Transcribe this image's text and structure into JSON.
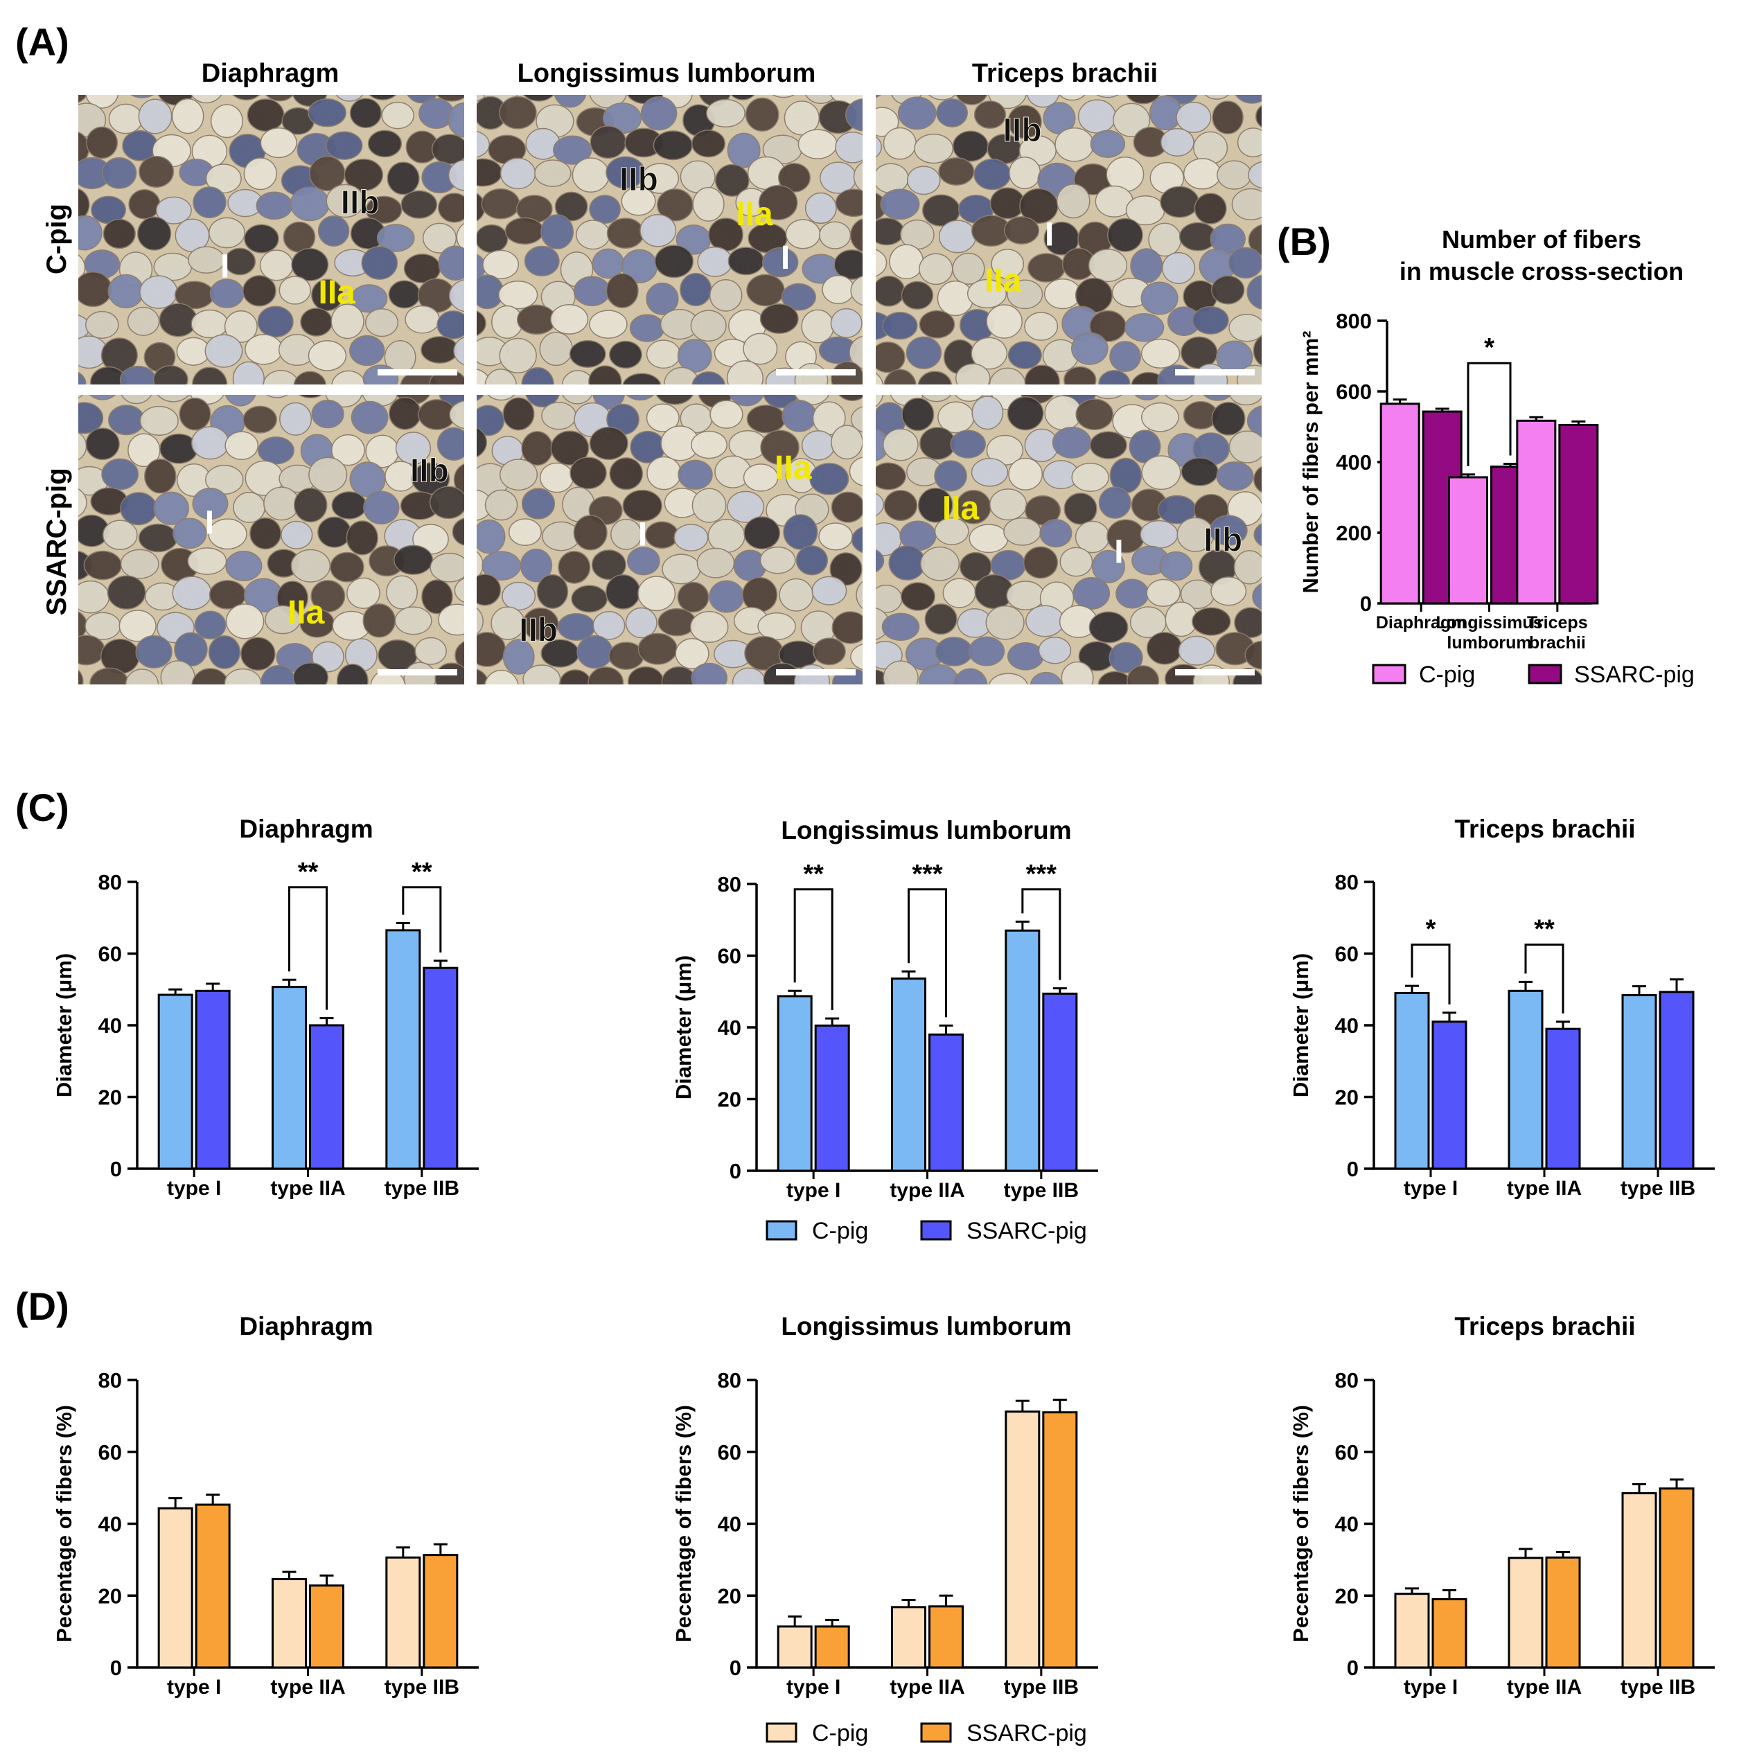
{
  "colors": {
    "b_c": "#f47ff0",
    "b_s": "#940a82",
    "c_c": "#7ab9f4",
    "c_s": "#5456fb",
    "d_c": "#fde0bb",
    "d_s": "#f9a136",
    "axis": "#000000"
  },
  "panel_a": {
    "label": "(A)",
    "columns": [
      "Diaphragm",
      "Longissimus lumborum",
      "Triceps brachii"
    ],
    "rows": [
      "C-pig",
      "SSARC-pig"
    ],
    "fiber_labels": [
      [
        "I",
        "IIa",
        "IIb"
      ],
      [
        "I",
        "IIa",
        "IIb"
      ],
      [
        "I",
        "IIa",
        "IIb"
      ],
      [
        "I",
        "IIa",
        "IIb"
      ],
      [
        "I",
        "IIa",
        "IIb"
      ],
      [
        "I",
        "IIa",
        "IIb"
      ]
    ]
  },
  "panel_b": {
    "label": "(B)"
  },
  "panel_c": {
    "label": "(C)"
  },
  "panel_d": {
    "label": "(D)"
  },
  "chart_data": [
    {
      "id": "B",
      "type": "bar",
      "title": "Number of fibers\nin muscle cross-section",
      "ylabel": "Number of fibers per mm²",
      "ylim": [
        0,
        800
      ],
      "yticks": [
        0,
        200,
        400,
        600,
        800
      ],
      "categories": [
        "Diaphragm",
        "Longissimus\nlumborum",
        "Triceps\nbrachii"
      ],
      "series": [
        {
          "name": "C-pig",
          "values": [
            565,
            357,
            517
          ],
          "errors": [
            12,
            8,
            10
          ]
        },
        {
          "name": "SSARC-pig",
          "values": [
            543,
            387,
            505
          ],
          "errors": [
            8,
            8,
            10
          ]
        }
      ],
      "significance": [
        {
          "category": 1,
          "label": "*"
        }
      ],
      "legend": [
        "C-pig",
        "SSARC-pig"
      ]
    },
    {
      "id": "C1",
      "type": "bar",
      "title": "Diaphragm",
      "ylabel": "Diameter (μm)",
      "ylim": [
        0,
        80
      ],
      "yticks": [
        0,
        20,
        40,
        60,
        80
      ],
      "categories": [
        "type I",
        "type IIA",
        "type IIB"
      ],
      "series": [
        {
          "name": "C-pig",
          "values": [
            48.5,
            50.7,
            66.5
          ],
          "errors": [
            1.5,
            2.0,
            2.0
          ]
        },
        {
          "name": "SSARC-pig",
          "values": [
            49.6,
            40.0,
            56.0
          ],
          "errors": [
            2.0,
            2.0,
            2.0
          ]
        }
      ],
      "significance": [
        {
          "category": 1,
          "label": "**"
        },
        {
          "category": 2,
          "label": "**"
        }
      ]
    },
    {
      "id": "C2",
      "type": "bar",
      "title": "Longissimus lumborum",
      "ylabel": "Diameter (μm)",
      "ylim": [
        0,
        80
      ],
      "yticks": [
        0,
        20,
        40,
        60,
        80
      ],
      "categories": [
        "type I",
        "type IIA",
        "type IIB"
      ],
      "series": [
        {
          "name": "C-pig",
          "values": [
            48.7,
            53.6,
            67.0
          ],
          "errors": [
            1.5,
            2.0,
            2.5
          ]
        },
        {
          "name": "SSARC-pig",
          "values": [
            40.5,
            38.0,
            49.4
          ],
          "errors": [
            2.0,
            2.5,
            1.5
          ]
        }
      ],
      "significance": [
        {
          "category": 0,
          "label": "**"
        },
        {
          "category": 1,
          "label": "***"
        },
        {
          "category": 2,
          "label": "***"
        }
      ]
    },
    {
      "id": "C3",
      "type": "bar",
      "title": "Triceps brachii",
      "ylabel": "Diameter (μm)",
      "ylim": [
        0,
        80
      ],
      "yticks": [
        0,
        20,
        40,
        60,
        80
      ],
      "categories": [
        "type I",
        "type IIA",
        "type IIB"
      ],
      "series": [
        {
          "name": "C-pig",
          "values": [
            49.0,
            49.6,
            48.4
          ],
          "errors": [
            2.0,
            2.5,
            2.5
          ]
        },
        {
          "name": "SSARC-pig",
          "values": [
            41.0,
            39.0,
            49.3
          ],
          "errors": [
            2.5,
            2.0,
            3.5
          ]
        }
      ],
      "significance": [
        {
          "category": 0,
          "label": "*"
        },
        {
          "category": 1,
          "label": "**"
        }
      ]
    },
    {
      "id": "D1",
      "type": "bar",
      "title": "Diaphragm",
      "ylabel": "Pecentage of fibers (%)",
      "ylim": [
        0,
        80
      ],
      "yticks": [
        0,
        20,
        40,
        60,
        80
      ],
      "categories": [
        "type I",
        "type IIA",
        "type IIB"
      ],
      "series": [
        {
          "name": "C-pig",
          "values": [
            44.3,
            24.6,
            30.6
          ],
          "errors": [
            2.8,
            2.0,
            2.8
          ]
        },
        {
          "name": "SSARC-pig",
          "values": [
            45.3,
            22.8,
            31.3
          ],
          "errors": [
            2.8,
            2.8,
            3.0
          ]
        }
      ],
      "significance": []
    },
    {
      "id": "D2",
      "type": "bar",
      "title": "Longissimus lumborum",
      "ylabel": "Pecentage of fibers (%)",
      "ylim": [
        0,
        80
      ],
      "yticks": [
        0,
        20,
        40,
        60,
        80
      ],
      "categories": [
        "type I",
        "type IIA",
        "type IIB"
      ],
      "series": [
        {
          "name": "C-pig",
          "values": [
            11.4,
            16.8,
            71.2
          ],
          "errors": [
            2.8,
            2.0,
            3.0
          ]
        },
        {
          "name": "SSARC-pig",
          "values": [
            11.4,
            17.0,
            71.0
          ],
          "errors": [
            1.8,
            3.0,
            3.5
          ]
        }
      ],
      "significance": []
    },
    {
      "id": "D3",
      "type": "bar",
      "title": "Triceps brachii",
      "ylabel": "Pecentage of fibers (%)",
      "ylim": [
        0,
        80
      ],
      "yticks": [
        0,
        20,
        40,
        60,
        80
      ],
      "categories": [
        "type I",
        "type IIA",
        "type IIB"
      ],
      "series": [
        {
          "name": "C-pig",
          "values": [
            20.5,
            30.5,
            48.5
          ],
          "errors": [
            1.5,
            2.5,
            2.5
          ]
        },
        {
          "name": "SSARC-pig",
          "values": [
            19.0,
            30.6,
            49.8
          ],
          "errors": [
            2.5,
            1.5,
            2.5
          ]
        }
      ],
      "significance": []
    }
  ],
  "legend_c": [
    "C-pig",
    "SSARC-pig"
  ],
  "legend_d": [
    "C-pig",
    "SSARC-pig"
  ]
}
